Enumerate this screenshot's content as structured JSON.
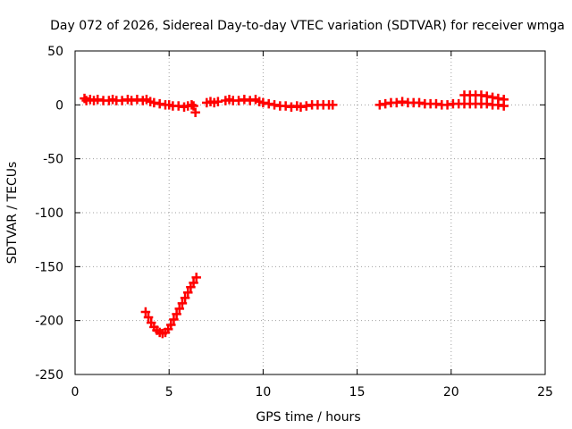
{
  "chart_data": {
    "type": "scatter",
    "title": "Day 072 of 2026, Sidereal Day-to-day VTEC variation (SDTVAR) for receiver wmga",
    "xlabel": "GPS time / hours",
    "ylabel": "SDTVAR / TECUs",
    "xlim": [
      0,
      25
    ],
    "ylim": [
      -250,
      50
    ],
    "xticks": [
      0,
      5,
      10,
      15,
      20,
      25
    ],
    "yticks": [
      50,
      0,
      -50,
      -100,
      -150,
      -200,
      -250
    ],
    "grid": true,
    "marker": "plus",
    "series": [
      {
        "name": "SDTVAR",
        "color": "#ff0000",
        "points": [
          [
            0.5,
            6
          ],
          [
            0.6,
            4
          ],
          [
            0.8,
            5
          ],
          [
            1.0,
            4
          ],
          [
            1.2,
            5
          ],
          [
            1.5,
            4
          ],
          [
            1.8,
            4
          ],
          [
            2.0,
            5
          ],
          [
            2.2,
            4
          ],
          [
            2.5,
            4
          ],
          [
            2.8,
            5
          ],
          [
            3.0,
            4
          ],
          [
            3.3,
            5
          ],
          [
            3.6,
            4
          ],
          [
            3.8,
            5
          ],
          [
            4.0,
            3
          ],
          [
            4.2,
            2
          ],
          [
            4.5,
            1
          ],
          [
            4.8,
            0
          ],
          [
            5.0,
            0
          ],
          [
            5.2,
            -1
          ],
          [
            5.5,
            -1
          ],
          [
            5.8,
            -2
          ],
          [
            6.0,
            -1
          ],
          [
            6.2,
            0
          ],
          [
            6.3,
            -1
          ],
          [
            6.4,
            -7
          ],
          [
            7.0,
            2
          ],
          [
            7.2,
            3
          ],
          [
            7.4,
            2
          ],
          [
            7.6,
            3
          ],
          [
            8.0,
            4
          ],
          [
            8.2,
            5
          ],
          [
            8.4,
            4
          ],
          [
            8.7,
            4
          ],
          [
            9.0,
            5
          ],
          [
            9.3,
            4
          ],
          [
            9.6,
            5
          ],
          [
            9.8,
            3
          ],
          [
            10.0,
            2
          ],
          [
            10.3,
            1
          ],
          [
            10.6,
            0
          ],
          [
            10.9,
            -1
          ],
          [
            11.2,
            -1
          ],
          [
            11.5,
            -2
          ],
          [
            11.8,
            -1
          ],
          [
            12.0,
            -2
          ],
          [
            12.3,
            -1
          ],
          [
            12.6,
            0
          ],
          [
            12.9,
            0
          ],
          [
            13.2,
            0
          ],
          [
            13.5,
            0
          ],
          [
            13.7,
            0
          ],
          [
            16.2,
            0
          ],
          [
            16.5,
            1
          ],
          [
            16.8,
            2
          ],
          [
            17.1,
            2
          ],
          [
            17.4,
            3
          ],
          [
            17.7,
            2
          ],
          [
            18.0,
            2
          ],
          [
            18.3,
            2
          ],
          [
            18.6,
            1
          ],
          [
            18.9,
            1
          ],
          [
            19.2,
            1
          ],
          [
            19.5,
            0
          ],
          [
            19.8,
            0
          ],
          [
            20.1,
            1
          ],
          [
            20.4,
            1
          ],
          [
            20.7,
            1
          ],
          [
            21.0,
            1
          ],
          [
            21.3,
            1
          ],
          [
            21.6,
            1
          ],
          [
            21.9,
            1
          ],
          [
            22.2,
            0
          ],
          [
            22.5,
            0
          ],
          [
            22.8,
            -1
          ],
          [
            20.7,
            9
          ],
          [
            21.0,
            9
          ],
          [
            21.3,
            9
          ],
          [
            21.6,
            9
          ],
          [
            21.9,
            8
          ],
          [
            22.2,
            7
          ],
          [
            22.5,
            6
          ],
          [
            22.8,
            5
          ],
          [
            3.75,
            -192
          ],
          [
            3.9,
            -197
          ],
          [
            4.05,
            -202
          ],
          [
            4.2,
            -206
          ],
          [
            4.35,
            -209
          ],
          [
            4.5,
            -211
          ],
          [
            4.65,
            -212
          ],
          [
            4.8,
            -211
          ],
          [
            4.95,
            -208
          ],
          [
            5.1,
            -204
          ],
          [
            5.25,
            -199
          ],
          [
            5.4,
            -194
          ],
          [
            5.55,
            -189
          ],
          [
            5.7,
            -184
          ],
          [
            5.85,
            -179
          ],
          [
            6.0,
            -174
          ],
          [
            6.15,
            -169
          ],
          [
            6.3,
            -165
          ],
          [
            6.45,
            -160
          ]
        ]
      }
    ]
  }
}
